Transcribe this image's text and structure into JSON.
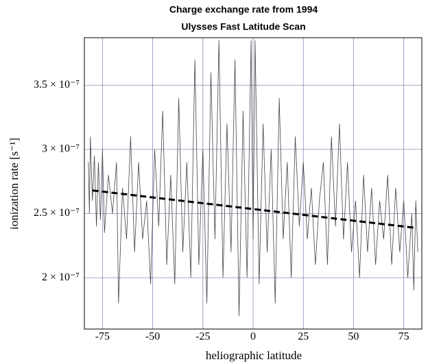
{
  "chart_data": {
    "type": "line",
    "title": "Charge exchange rate from 1994",
    "subtitle": "Ulysses Fast Latitude Scan",
    "xlabel": "heliographic latitude",
    "ylabel": "ionization rate [s⁻¹]",
    "xlim": [
      -84,
      84
    ],
    "xticks": [
      -75,
      -50,
      -25,
      0,
      25,
      50,
      75
    ],
    "ylim": [
      1.6e-07,
      3.87e-07
    ],
    "yticks": [
      {
        "value": 2e-07,
        "label": "2 × 10⁻⁷"
      },
      {
        "value": 2.5e-07,
        "label": "2.5 × 10⁻⁷"
      },
      {
        "value": 3e-07,
        "label": "3 × 10⁻⁷"
      },
      {
        "value": 3.5e-07,
        "label": "3.5 × 10⁻⁷"
      }
    ],
    "grid": true,
    "series": [
      {
        "color": "#444444",
        "line_style": "solid",
        "x": [
          -82,
          -81.5,
          -81,
          -80,
          -79,
          -78,
          -77,
          -76,
          -75,
          -74,
          -72,
          -70,
          -68,
          -67,
          -65,
          -63,
          -61,
          -59,
          -57,
          -55,
          -53,
          -51,
          -49,
          -47,
          -45,
          -43,
          -41,
          -39,
          -37,
          -35,
          -33,
          -31,
          -29,
          -27,
          -25,
          -23,
          -21,
          -19,
          -17,
          -15,
          -13,
          -11,
          -9,
          -7,
          -5,
          -3,
          -1,
          0,
          1,
          3,
          5,
          7,
          9,
          11,
          13,
          15,
          17,
          19,
          21,
          23,
          25,
          27,
          29,
          31,
          33,
          35,
          37,
          39,
          41,
          43,
          45,
          47,
          49,
          51,
          53,
          55,
          57,
          59,
          61,
          63,
          65,
          67,
          69,
          71,
          73,
          75,
          77,
          79,
          80,
          81,
          82
        ],
        "values": [
          2.9e-07,
          2.5e-07,
          3.1e-07,
          2.6e-07,
          2.95e-07,
          2.4e-07,
          2.9e-07,
          2.45e-07,
          3e-07,
          2.35e-07,
          2.8e-07,
          2.5e-07,
          2.9e-07,
          1.8e-07,
          2.7e-07,
          2.3e-07,
          3.1e-07,
          2.2e-07,
          2.9e-07,
          2.3e-07,
          2.6e-07,
          1.95e-07,
          3e-07,
          2.4e-07,
          3.3e-07,
          2.1e-07,
          2.8e-07,
          1.95e-07,
          3.4e-07,
          2.2e-07,
          2.9e-07,
          2e-07,
          3.7e-07,
          2.1e-07,
          3e-07,
          1.8e-07,
          3.6e-07,
          2.3e-07,
          3.85e-07,
          2e-07,
          3.2e-07,
          2.2e-07,
          3.7e-07,
          1.7e-07,
          3.3e-07,
          2e-07,
          3.85e-07,
          2.3e-07,
          3.85e-07,
          1.95e-07,
          3.2e-07,
          2.2e-07,
          3e-07,
          1.8e-07,
          3.4e-07,
          2.3e-07,
          2.9e-07,
          2e-07,
          3.1e-07,
          2.4e-07,
          2.9e-07,
          2.3e-07,
          2.7e-07,
          2.1e-07,
          2.6e-07,
          2.9e-07,
          2.1e-07,
          3.1e-07,
          2.4e-07,
          3.2e-07,
          2.3e-07,
          2.9e-07,
          2.2e-07,
          2.6e-07,
          2e-07,
          2.8e-07,
          2.2e-07,
          2.7e-07,
          2.1e-07,
          2.6e-07,
          2.3e-07,
          2.8e-07,
          2.1e-07,
          2.7e-07,
          2.2e-07,
          2.6e-07,
          2e-07,
          2.5e-07,
          1.9e-07,
          2.6e-07,
          2.2e-07
        ]
      },
      {
        "color": "#000000",
        "line_style": "dashed",
        "x": [
          -80,
          80
        ],
        "values": [
          2.68e-07,
          2.39e-07
        ]
      }
    ]
  }
}
